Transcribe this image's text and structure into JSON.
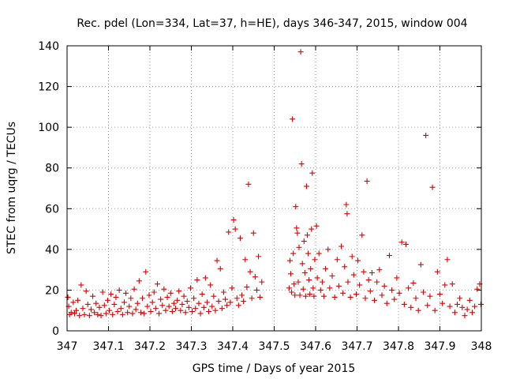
{
  "chart_data": {
    "type": "scatter",
    "title": "Rec. pdel (Lon=334, Lat=37, h=HE), days 346-347, 2015, window 004",
    "xlabel": "GPS time / Days of year 2015",
    "ylabel": "STEC from uqrg / TECUs",
    "xlim": [
      347,
      348
    ],
    "ylim": [
      0,
      140
    ],
    "x_ticks": [
      347,
      347.1,
      347.2,
      347.3,
      347.4,
      347.5,
      347.6,
      347.7,
      347.8,
      347.9,
      348
    ],
    "x_tick_labels": [
      "347",
      "347.1",
      "347.2",
      "347.3",
      "347.4",
      "347.5",
      "347.6",
      "347.7",
      "347.8",
      "347.9",
      "348"
    ],
    "y_ticks": [
      0,
      20,
      40,
      60,
      80,
      100,
      120,
      140
    ],
    "y_tick_labels": [
      "0",
      "20",
      "40",
      "60",
      "80",
      "100",
      "120",
      "140"
    ],
    "grid": true,
    "marker": "+",
    "color": "#dd0000",
    "series": [
      {
        "points": [
          [
            347.002,
            16.5
          ],
          [
            347.004,
            12.0
          ],
          [
            347.006,
            8.0
          ],
          [
            347.01,
            9.0
          ],
          [
            347.015,
            14.0
          ],
          [
            347.018,
            8.5
          ],
          [
            347.022,
            10.0
          ],
          [
            347.026,
            15.0
          ],
          [
            347.03,
            7.5
          ],
          [
            347.034,
            22.5
          ],
          [
            347.038,
            11.0
          ],
          [
            347.042,
            8.0
          ],
          [
            347.046,
            19.5
          ],
          [
            347.05,
            13.0
          ],
          [
            347.054,
            7.5
          ],
          [
            347.058,
            10.5
          ],
          [
            347.062,
            17.0
          ],
          [
            347.066,
            9.0
          ],
          [
            347.07,
            13.5
          ],
          [
            347.074,
            8.0
          ],
          [
            347.078,
            11.5
          ],
          [
            347.082,
            7.5
          ],
          [
            347.086,
            19.0
          ],
          [
            347.09,
            12.5
          ],
          [
            347.094,
            8.5
          ],
          [
            347.098,
            15.0
          ],
          [
            347.102,
            10.0
          ],
          [
            347.106,
            18.0
          ],
          [
            347.11,
            8.0
          ],
          [
            347.114,
            13.0
          ],
          [
            347.118,
            16.5
          ],
          [
            347.122,
            9.5
          ],
          [
            347.126,
            20.0
          ],
          [
            347.13,
            11.0
          ],
          [
            347.134,
            8.0
          ],
          [
            347.138,
            14.0
          ],
          [
            347.142,
            18.5
          ],
          [
            347.146,
            9.0
          ],
          [
            347.15,
            12.0
          ],
          [
            347.154,
            16.0
          ],
          [
            347.158,
            8.5
          ],
          [
            347.162,
            20.5
          ],
          [
            347.166,
            10.5
          ],
          [
            347.17,
            13.5
          ],
          [
            347.174,
            24.5
          ],
          [
            347.178,
            9.0
          ],
          [
            347.182,
            16.0
          ],
          [
            347.186,
            8.5
          ],
          [
            347.19,
            29.0
          ],
          [
            347.194,
            12.0
          ],
          [
            347.198,
            17.5
          ],
          [
            347.202,
            9.5
          ],
          [
            347.206,
            14.0
          ],
          [
            347.21,
            19.0
          ],
          [
            347.214,
            11.0
          ],
          [
            347.218,
            23.0
          ],
          [
            347.222,
            8.5
          ],
          [
            347.226,
            15.5
          ],
          [
            347.23,
            12.5
          ],
          [
            347.234,
            20.5
          ],
          [
            347.238,
            10.0
          ],
          [
            347.242,
            16.5
          ],
          [
            347.246,
            12.0
          ],
          [
            347.25,
            18.5
          ],
          [
            347.254,
            9.5
          ],
          [
            347.258,
            13.5
          ],
          [
            347.262,
            11.0
          ],
          [
            347.266,
            15.0
          ],
          [
            347.27,
            19.5
          ],
          [
            347.274,
            10.0
          ],
          [
            347.278,
            13.0
          ],
          [
            347.282,
            17.0
          ],
          [
            347.286,
            9.0
          ],
          [
            347.29,
            14.5
          ],
          [
            347.294,
            11.5
          ],
          [
            347.298,
            21.0
          ],
          [
            347.302,
            9.5
          ],
          [
            347.306,
            16.0
          ],
          [
            347.31,
            11.0
          ],
          [
            347.314,
            25.0
          ],
          [
            347.318,
            13.5
          ],
          [
            347.322,
            8.5
          ],
          [
            347.326,
            18.0
          ],
          [
            347.33,
            11.5
          ],
          [
            347.334,
            26.0
          ],
          [
            347.338,
            14.0
          ],
          [
            347.342,
            9.5
          ],
          [
            347.346,
            22.5
          ],
          [
            347.35,
            12.0
          ],
          [
            347.354,
            17.0
          ],
          [
            347.358,
            10.0
          ],
          [
            347.362,
            34.5
          ],
          [
            347.366,
            14.5
          ],
          [
            347.37,
            30.5
          ],
          [
            347.374,
            11.0
          ],
          [
            347.378,
            19.0
          ],
          [
            347.382,
            15.5
          ],
          [
            347.386,
            12.5
          ],
          [
            347.39,
            48.5
          ],
          [
            347.394,
            14.0
          ],
          [
            347.398,
            21.0
          ],
          [
            347.402,
            54.5
          ],
          [
            347.406,
            50.0
          ],
          [
            347.41,
            16.0
          ],
          [
            347.414,
            12.5
          ],
          [
            347.418,
            45.5
          ],
          [
            347.422,
            17.5
          ],
          [
            347.426,
            14.5
          ],
          [
            347.43,
            35.0
          ],
          [
            347.434,
            21.5
          ],
          [
            347.438,
            72.0
          ],
          [
            347.442,
            29.0
          ],
          [
            347.446,
            16.0
          ],
          [
            347.45,
            48.0
          ],
          [
            347.454,
            26.5
          ],
          [
            347.458,
            20.0
          ],
          [
            347.462,
            36.5
          ],
          [
            347.466,
            16.5
          ],
          [
            347.47,
            24.0
          ],
          [
            347.536,
            21.0
          ],
          [
            347.538,
            34.5
          ],
          [
            347.54,
            28.0
          ],
          [
            347.542,
            19.0
          ],
          [
            347.544,
            104.0
          ],
          [
            347.546,
            38.0
          ],
          [
            347.548,
            23.0
          ],
          [
            347.55,
            17.5
          ],
          [
            347.552,
            61.0
          ],
          [
            347.554,
            50.5
          ],
          [
            347.556,
            48.0
          ],
          [
            347.558,
            24.0
          ],
          [
            347.56,
            41.0
          ],
          [
            347.562,
            17.5
          ],
          [
            347.564,
            137.0
          ],
          [
            347.566,
            82.0
          ],
          [
            347.568,
            33.0
          ],
          [
            347.57,
            20.5
          ],
          [
            347.572,
            44.0
          ],
          [
            347.574,
            28.5
          ],
          [
            347.576,
            17.0
          ],
          [
            347.578,
            71.0
          ],
          [
            347.58,
            47.0
          ],
          [
            347.582,
            38.0
          ],
          [
            347.584,
            25.0
          ],
          [
            347.586,
            18.0
          ],
          [
            347.588,
            30.5
          ],
          [
            347.59,
            50.0
          ],
          [
            347.592,
            77.5
          ],
          [
            347.594,
            21.0
          ],
          [
            347.596,
            17.0
          ],
          [
            347.598,
            35.0
          ],
          [
            347.602,
            51.5
          ],
          [
            347.604,
            26.0
          ],
          [
            347.608,
            38.0
          ],
          [
            347.612,
            20.0
          ],
          [
            347.616,
            24.0
          ],
          [
            347.62,
            17.0
          ],
          [
            347.624,
            30.5
          ],
          [
            347.63,
            40.0
          ],
          [
            347.634,
            21.0
          ],
          [
            347.64,
            27.0
          ],
          [
            347.646,
            16.5
          ],
          [
            347.652,
            35.0
          ],
          [
            347.656,
            22.0
          ],
          [
            347.662,
            41.5
          ],
          [
            347.666,
            18.5
          ],
          [
            347.67,
            31.5
          ],
          [
            347.674,
            62.0
          ],
          [
            347.676,
            57.5
          ],
          [
            347.678,
            24.0
          ],
          [
            347.684,
            16.5
          ],
          [
            347.688,
            36.5
          ],
          [
            347.692,
            27.5
          ],
          [
            347.698,
            18.0
          ],
          [
            347.702,
            34.5
          ],
          [
            347.706,
            22.5
          ],
          [
            347.712,
            47.0
          ],
          [
            347.716,
            29.0
          ],
          [
            347.72,
            16.0
          ],
          [
            347.724,
            73.5
          ],
          [
            347.728,
            25.0
          ],
          [
            347.732,
            19.5
          ],
          [
            347.736,
            28.5
          ],
          [
            347.742,
            15.0
          ],
          [
            347.748,
            24.0
          ],
          [
            347.754,
            30.0
          ],
          [
            347.76,
            17.5
          ],
          [
            347.766,
            22.0
          ],
          [
            347.772,
            13.5
          ],
          [
            347.778,
            37.0
          ],
          [
            347.784,
            20.0
          ],
          [
            347.79,
            15.5
          ],
          [
            347.796,
            26.0
          ],
          [
            347.802,
            18.5
          ],
          [
            347.808,
            43.5
          ],
          [
            347.814,
            13.0
          ],
          [
            347.818,
            42.5
          ],
          [
            347.824,
            21.0
          ],
          [
            347.83,
            11.5
          ],
          [
            347.836,
            23.5
          ],
          [
            347.842,
            16.0
          ],
          [
            347.848,
            10.0
          ],
          [
            347.854,
            32.5
          ],
          [
            347.86,
            19.0
          ],
          [
            347.866,
            96.0
          ],
          [
            347.87,
            12.5
          ],
          [
            347.876,
            17.0
          ],
          [
            347.882,
            70.5
          ],
          [
            347.888,
            10.0
          ],
          [
            347.894,
            29.0
          ],
          [
            347.9,
            18.0
          ],
          [
            347.906,
            13.5
          ],
          [
            347.912,
            22.5
          ],
          [
            347.918,
            35.0
          ],
          [
            347.924,
            12.0
          ],
          [
            347.93,
            23.0
          ],
          [
            347.936,
            9.0
          ],
          [
            347.942,
            13.0
          ],
          [
            347.948,
            16.0
          ],
          [
            347.954,
            11.5
          ],
          [
            347.96,
            7.5
          ],
          [
            347.966,
            10.5
          ],
          [
            347.972,
            15.0
          ],
          [
            347.978,
            9.0
          ],
          [
            347.984,
            12.0
          ],
          [
            347.99,
            20.5
          ],
          [
            347.996,
            23.0
          ],
          [
            347.999,
            13.0
          ]
        ]
      }
    ]
  }
}
